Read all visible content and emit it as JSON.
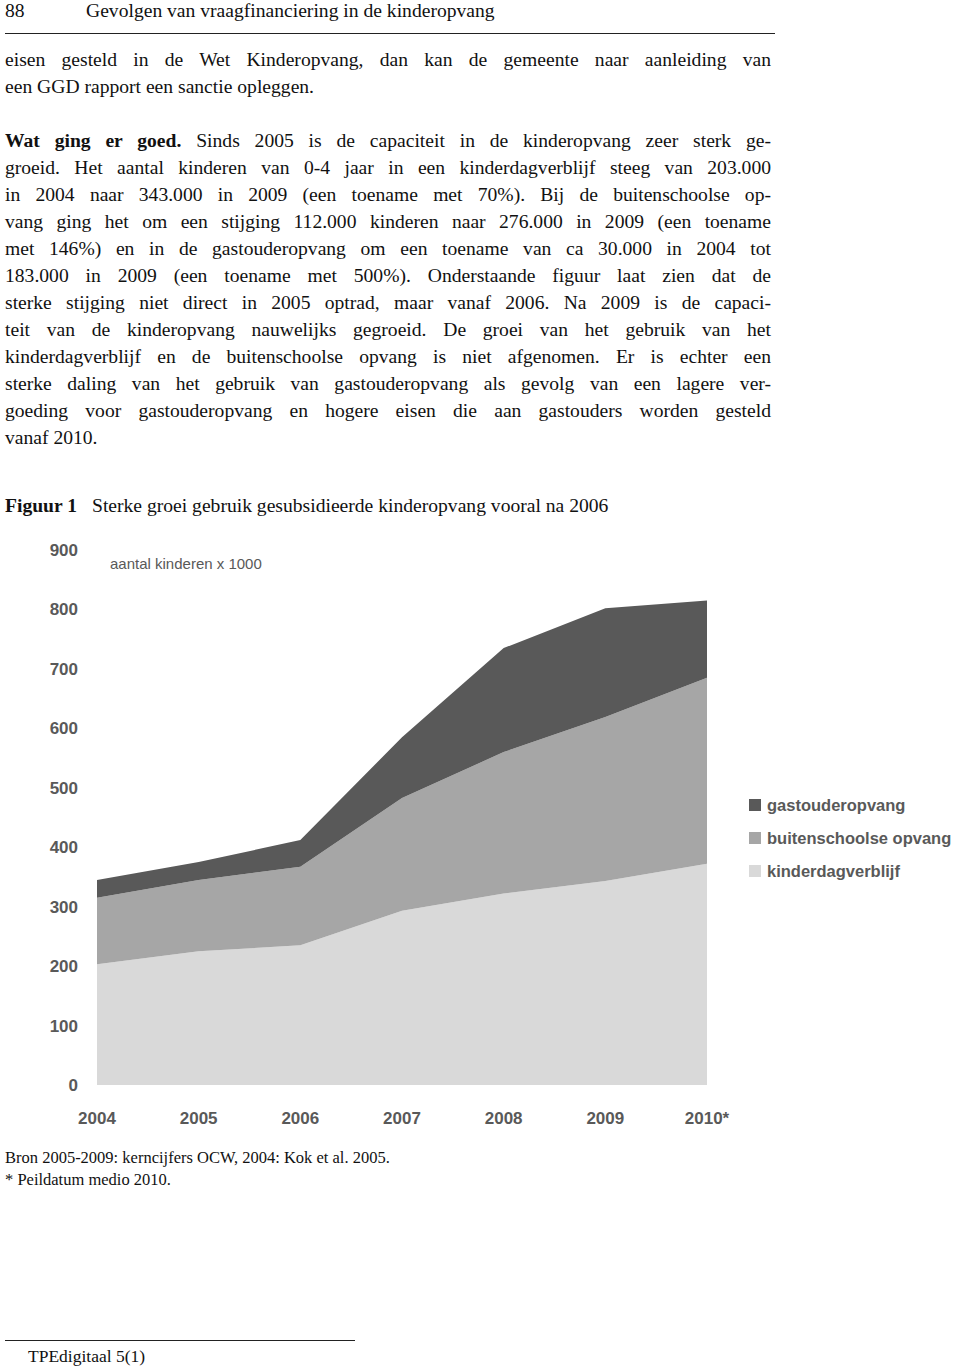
{
  "header": {
    "page_number": "88",
    "running_title": "Gevolgen van vraagfinanciering in de kinderopvang"
  },
  "paragraphs": [
    {
      "lines": [
        "eisen gesteld in de Wet Kinderopvang, dan kan de gemeente naar aanleiding van",
        "een GGD rapport een sanctie opleggen."
      ]
    },
    {
      "bold_lead": "Wat ging er goed.",
      "lines": [
        " Sinds 2005 is de capaciteit in de kinderopvang zeer sterk ge-",
        "groeid. Het aantal kinderen van 0-4 jaar in een kinderdagverblijf steeg van 203.000",
        "in 2004 naar 343.000 in 2009 (een toename met 70%). Bij de buitenschoolse op-",
        "vang ging het om een stijging 112.000 kinderen naar 276.000 in 2009 (een toename",
        "met 146%) en in de gastouderopvang om een toename van ca 30.000 in 2004 tot",
        "183.000 in 2009 (een toename met 500%). Onderstaande figuur laat zien dat de",
        "sterke stijging niet direct  in 2005 optrad, maar vanaf 2006. Na 2009 is de capaci-",
        "teit van de kinderopvang nauwelijks gegroeid. De groei van het gebruik van het",
        "kinderdagverblijf en de buitenschoolse opvang is niet afgenomen. Er is echter een",
        "sterke daling van het gebruik van gastouderopvang als gevolg van een lagere ver-",
        "goeding voor gastouderopvang en hogere eisen die aan gastouders worden gesteld",
        "vanaf 2010."
      ]
    }
  ],
  "figure": {
    "label": "Figuur 1",
    "caption": "Sterke groei gebruik gesubsidieerde kinderopvang vooral na 2006"
  },
  "chart_data": {
    "type": "area",
    "stacked": true,
    "y_label": "aantal kinderen x 1000",
    "categories": [
      "2004",
      "2005",
      "2006",
      "2007",
      "2008",
      "2009",
      "2010*"
    ],
    "series": [
      {
        "name": "kinderdagverblijf",
        "color": "#d9d9d9",
        "values": [
          203,
          225,
          235,
          293,
          322,
          343,
          372
        ]
      },
      {
        "name": "buitenschoolse opvang",
        "color": "#a6a6a6",
        "values": [
          112,
          120,
          132,
          190,
          238,
          276,
          313
        ]
      },
      {
        "name": "gastouderopvang",
        "color": "#595959",
        "values": [
          30,
          30,
          45,
          102,
          175,
          183,
          130
        ]
      }
    ],
    "ylim": [
      0,
      900
    ],
    "yticks": [
      0,
      100,
      200,
      300,
      400,
      500,
      600,
      700,
      800,
      900
    ],
    "grid": false,
    "legend": "right"
  },
  "source_notes": [
    "Bron 2005-2009: kerncijfers OCW, 2004: Kok et al. 2005.",
    "* Peildatum medio 2010."
  ],
  "footer": "TPEdigitaal 5(1)"
}
